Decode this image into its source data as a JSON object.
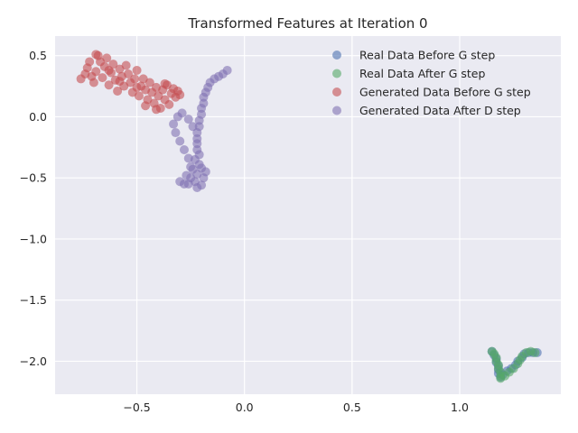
{
  "chart_data": {
    "type": "scatter",
    "title": "Transformed Features at Iteration 0",
    "xlabel": "",
    "ylabel": "",
    "xlim": [
      -0.88,
      1.47
    ],
    "ylim": [
      -2.27,
      0.66
    ],
    "xticks": [
      -0.5,
      0.0,
      0.5,
      1.0
    ],
    "xtick_labels": [
      "−0.5",
      "0.0",
      "0.5",
      "1.0"
    ],
    "yticks": [
      0.5,
      0.0,
      -0.5,
      -1.0,
      -1.5,
      -2.0
    ],
    "ytick_labels": [
      "0.5",
      "0.0",
      "−0.5",
      "−1.0",
      "−1.5",
      "−2.0"
    ],
    "grid": true,
    "legend_position": "top-right",
    "series": [
      {
        "name": "Real Data Before G step",
        "color": "#4c72b0",
        "points": [
          [
            1.15,
            -1.92
          ],
          [
            1.16,
            -1.95
          ],
          [
            1.17,
            -1.98
          ],
          [
            1.17,
            -2.01
          ],
          [
            1.18,
            -2.04
          ],
          [
            1.18,
            -2.07
          ],
          [
            1.18,
            -2.1
          ],
          [
            1.19,
            -2.13
          ],
          [
            1.2,
            -2.11
          ],
          [
            1.22,
            -2.08
          ],
          [
            1.24,
            -2.06
          ],
          [
            1.26,
            -2.03
          ],
          [
            1.27,
            -2.0
          ],
          [
            1.29,
            -1.97
          ],
          [
            1.3,
            -1.94
          ],
          [
            1.32,
            -1.93
          ],
          [
            1.34,
            -1.93
          ],
          [
            1.36,
            -1.93
          ]
        ]
      },
      {
        "name": "Real Data After G step",
        "color": "#55a868",
        "points": [
          [
            1.15,
            -1.92
          ],
          [
            1.16,
            -1.94
          ],
          [
            1.17,
            -1.97
          ],
          [
            1.17,
            -2.0
          ],
          [
            1.18,
            -2.03
          ],
          [
            1.18,
            -2.06
          ],
          [
            1.19,
            -2.09
          ],
          [
            1.19,
            -2.12
          ],
          [
            1.19,
            -2.14
          ],
          [
            1.21,
            -2.12
          ],
          [
            1.23,
            -2.09
          ],
          [
            1.25,
            -2.06
          ],
          [
            1.27,
            -2.02
          ],
          [
            1.28,
            -1.99
          ],
          [
            1.29,
            -1.96
          ],
          [
            1.31,
            -1.93
          ],
          [
            1.33,
            -1.92
          ],
          [
            1.35,
            -1.93
          ]
        ]
      },
      {
        "name": "Generated Data Before G step",
        "color": "#c44e52",
        "points": [
          [
            -0.76,
            0.31
          ],
          [
            -0.74,
            0.35
          ],
          [
            -0.73,
            0.4
          ],
          [
            -0.71,
            0.33
          ],
          [
            -0.7,
            0.28
          ],
          [
            -0.69,
            0.37
          ],
          [
            -0.68,
            0.5
          ],
          [
            -0.67,
            0.45
          ],
          [
            -0.66,
            0.32
          ],
          [
            -0.65,
            0.41
          ],
          [
            -0.64,
            0.48
          ],
          [
            -0.63,
            0.26
          ],
          [
            -0.62,
            0.36
          ],
          [
            -0.61,
            0.43
          ],
          [
            -0.6,
            0.3
          ],
          [
            -0.59,
            0.21
          ],
          [
            -0.58,
            0.39
          ],
          [
            -0.57,
            0.33
          ],
          [
            -0.56,
            0.25
          ],
          [
            -0.55,
            0.42
          ],
          [
            -0.54,
            0.35
          ],
          [
            -0.53,
            0.28
          ],
          [
            -0.52,
            0.2
          ],
          [
            -0.51,
            0.31
          ],
          [
            -0.5,
            0.38
          ],
          [
            -0.49,
            0.17
          ],
          [
            -0.48,
            0.25
          ],
          [
            -0.47,
            0.31
          ],
          [
            -0.46,
            0.22
          ],
          [
            -0.45,
            0.14
          ],
          [
            -0.44,
            0.28
          ],
          [
            -0.43,
            0.2
          ],
          [
            -0.42,
            0.11
          ],
          [
            -0.41,
            0.24
          ],
          [
            -0.4,
            0.17
          ],
          [
            -0.39,
            0.07
          ],
          [
            -0.38,
            0.22
          ],
          [
            -0.37,
            0.14
          ],
          [
            -0.36,
            0.26
          ],
          [
            -0.35,
            0.1
          ],
          [
            -0.34,
            0.19
          ],
          [
            -0.33,
            0.23
          ],
          [
            -0.32,
            0.16
          ],
          [
            -0.31,
            0.21
          ],
          [
            -0.3,
            0.18
          ],
          [
            -0.72,
            0.45
          ],
          [
            -0.69,
            0.51
          ],
          [
            -0.63,
            0.38
          ],
          [
            -0.58,
            0.29
          ],
          [
            -0.5,
            0.24
          ],
          [
            -0.46,
            0.09
          ],
          [
            -0.41,
            0.06
          ],
          [
            -0.37,
            0.27
          ]
        ]
      },
      {
        "name": "Generated Data After D step",
        "color": "#8172b2",
        "points": [
          [
            -0.08,
            0.38
          ],
          [
            -0.1,
            0.35
          ],
          [
            -0.12,
            0.33
          ],
          [
            -0.14,
            0.31
          ],
          [
            -0.16,
            0.28
          ],
          [
            -0.17,
            0.24
          ],
          [
            -0.18,
            0.2
          ],
          [
            -0.19,
            0.16
          ],
          [
            -0.19,
            0.11
          ],
          [
            -0.2,
            0.07
          ],
          [
            -0.2,
            0.02
          ],
          [
            -0.21,
            -0.03
          ],
          [
            -0.21,
            -0.08
          ],
          [
            -0.22,
            -0.13
          ],
          [
            -0.22,
            -0.18
          ],
          [
            -0.22,
            -0.22
          ],
          [
            -0.22,
            -0.27
          ],
          [
            -0.21,
            -0.31
          ],
          [
            -0.23,
            -0.35
          ],
          [
            -0.21,
            -0.39
          ],
          [
            -0.24,
            -0.43
          ],
          [
            -0.22,
            -0.47
          ],
          [
            -0.25,
            -0.5
          ],
          [
            -0.23,
            -0.53
          ],
          [
            -0.26,
            -0.55
          ],
          [
            -0.28,
            -0.55
          ],
          [
            -0.3,
            -0.53
          ],
          [
            -0.27,
            -0.48
          ],
          [
            -0.25,
            -0.41
          ],
          [
            -0.26,
            -0.34
          ],
          [
            -0.28,
            -0.27
          ],
          [
            -0.3,
            -0.2
          ],
          [
            -0.32,
            -0.13
          ],
          [
            -0.33,
            -0.06
          ],
          [
            -0.31,
            0.0
          ],
          [
            -0.29,
            0.03
          ],
          [
            -0.26,
            -0.02
          ],
          [
            -0.24,
            -0.08
          ],
          [
            -0.2,
            -0.42
          ],
          [
            -0.19,
            -0.5
          ],
          [
            -0.2,
            -0.56
          ],
          [
            -0.18,
            -0.45
          ],
          [
            -0.22,
            -0.58
          ]
        ]
      }
    ]
  }
}
